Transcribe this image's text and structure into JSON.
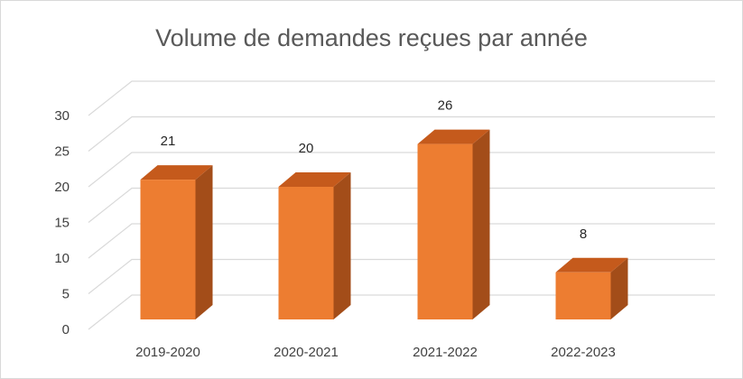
{
  "chart_data": {
    "type": "bar",
    "title": "Volume de demandes reçues par année",
    "categories": [
      "2019-2020",
      "2020-2021",
      "2021-2022",
      "2022-2023"
    ],
    "values": [
      21,
      20,
      26,
      8
    ],
    "data_labels": [
      "21",
      "20",
      "26",
      "8"
    ],
    "xlabel": "",
    "ylabel": "",
    "ylim": [
      0,
      30
    ],
    "yticks": [
      "0",
      "5",
      "10",
      "15",
      "20",
      "25",
      "30"
    ],
    "grid": true,
    "legend": "none",
    "style": "3d-column",
    "colors": {
      "bar_front": "#ED7D31",
      "bar_top": "#C55A1C",
      "bar_side": "#A34D19",
      "grid": "#D9D9D9"
    }
  }
}
